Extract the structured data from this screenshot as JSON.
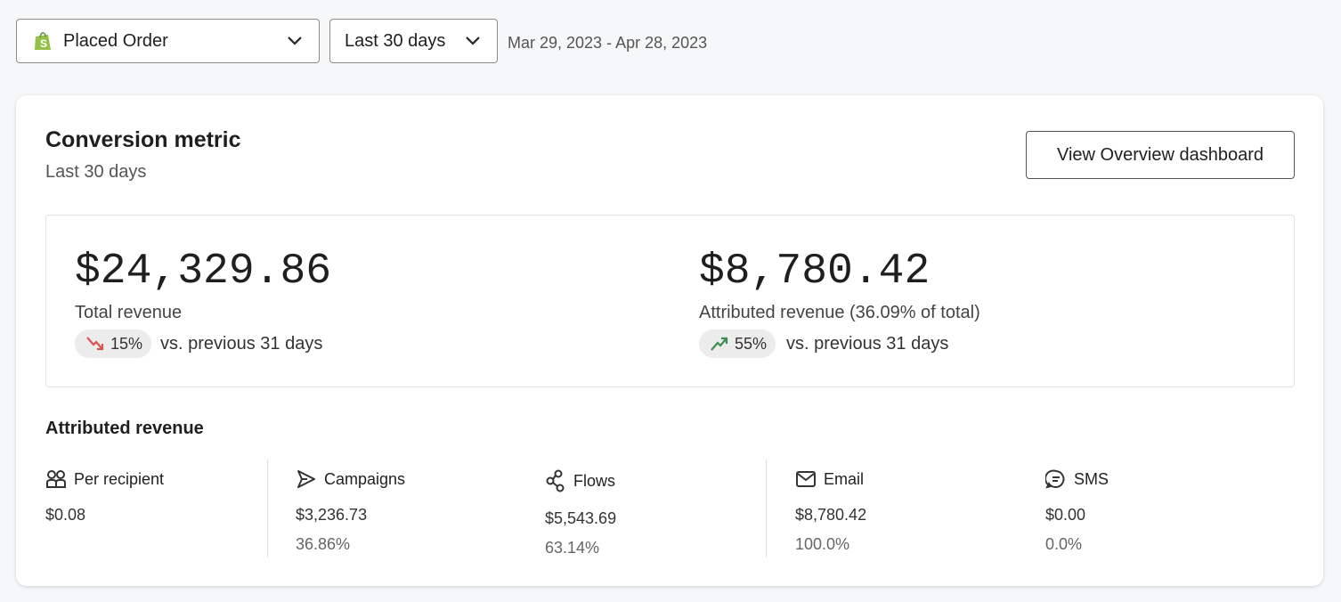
{
  "filters": {
    "metric": "Placed Order",
    "range": "Last 30 days",
    "dates": "Mar 29, 2023 - Apr 28, 2023"
  },
  "card": {
    "title": "Conversion metric",
    "subtitle": "Last 30 days",
    "button": "View Overview dashboard",
    "summary": [
      {
        "value": "$24,329.86",
        "label": "Total revenue",
        "change": "15%",
        "comparison": "vs. previous 31 days"
      },
      {
        "value": "$8,780.42",
        "label": "Attributed revenue (36.09% of total)",
        "change": "55%",
        "comparison": "vs. previous 31 days"
      }
    ],
    "attributed": {
      "title": "Attributed revenue",
      "items": [
        {
          "label": "Per recipient",
          "value": "$0.08"
        },
        {
          "label": "Campaigns",
          "value": "$3,236.73",
          "share": "36.86%"
        },
        {
          "label": "Flows",
          "value": "$5,543.69",
          "share": "63.14%"
        },
        {
          "label": "Email",
          "value": "$8,780.42",
          "share": "100.0%"
        },
        {
          "label": "SMS",
          "value": "$0.00",
          "share": "0.0%"
        }
      ]
    }
  }
}
